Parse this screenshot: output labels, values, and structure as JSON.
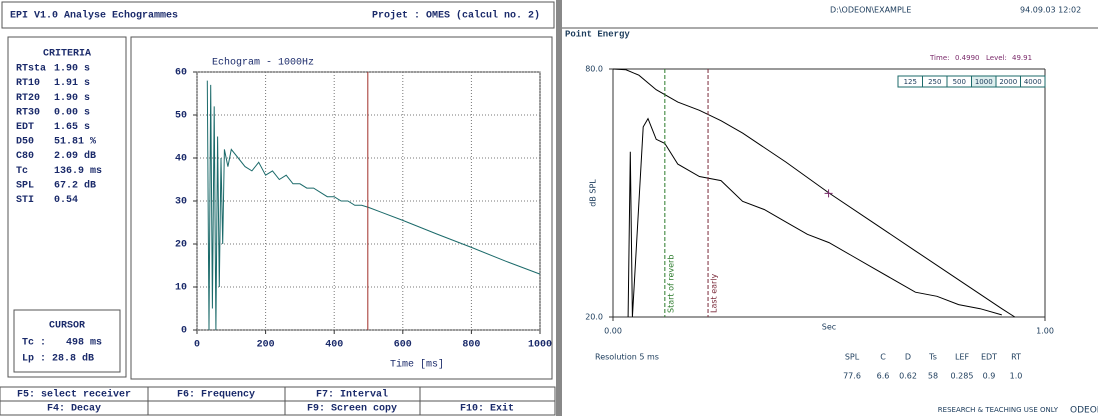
{
  "header": {
    "title": "EPI V1.0  Analyse Echogrammes",
    "project": "Projet : OMES (calcul no. 2)"
  },
  "criteria": {
    "title": "CRITERIA",
    "rows": [
      [
        "RTsta",
        "1.90 s"
      ],
      [
        "RT10",
        "1.91 s"
      ],
      [
        "RT20",
        "1.90 s"
      ],
      [
        "RT30",
        "0.00 s"
      ],
      [
        "EDT",
        "1.65 s"
      ],
      [
        "D50",
        "51.81 %"
      ],
      [
        "C80",
        "2.09 dB"
      ],
      [
        "Tc",
        "136.9 ms"
      ],
      [
        "SPL",
        "67.2 dB"
      ],
      [
        "STI",
        "0.54"
      ]
    ]
  },
  "cursor_box": {
    "title": "CURSOR",
    "tc_label": "Tc :",
    "tc": {
      "value": 498,
      "label": "498 ms"
    },
    "lp": "Lp : 28.8 dB"
  },
  "function_keys": [
    [
      "F5: select receiver",
      "F6: Frequency",
      "F7: Interval"
    ],
    [
      "F4: Decay",
      "F9: Screen copy",
      "F10: Exit"
    ]
  ],
  "right_header": {
    "path": "D:\\ODEON\\EXAMPLE",
    "datetime": "94.09.03 12:02"
  },
  "chart_data": [
    {
      "type": "line",
      "title": "Echogram - 1000Hz",
      "x_label": "Time [ms]",
      "xlim": [
        0,
        1000
      ],
      "xticks": [
        0,
        200,
        400,
        600,
        800,
        1000
      ],
      "ylim": [
        0,
        60
      ],
      "yticks": [
        0,
        10,
        20,
        30,
        40,
        50,
        60
      ],
      "grid": true,
      "series": [
        {
          "color": "#1b6a6a",
          "x": [
            30,
            35,
            40,
            45,
            50,
            55,
            60,
            65,
            70,
            75,
            80,
            90,
            100,
            120,
            140,
            160,
            180,
            200,
            220,
            240,
            260,
            280,
            300,
            320,
            340,
            360,
            380,
            400,
            420,
            440,
            460,
            480,
            500,
            600,
            700,
            800,
            900,
            1000
          ],
          "values": [
            58,
            0,
            57,
            5,
            52,
            0,
            45,
            10,
            40,
            20,
            42,
            38,
            42,
            40,
            38,
            37,
            39,
            36,
            37,
            35,
            36,
            34,
            34,
            33,
            33,
            32,
            31,
            31,
            30,
            30,
            29,
            29,
            28.5,
            25.5,
            22.3,
            19.2,
            16,
            13
          ]
        }
      ]
    },
    {
      "type": "line",
      "title": "Point Energy",
      "x_label": "Sec",
      "y_label": "dB SPL",
      "xlim": [
        0,
        1
      ],
      "xticks": [
        {
          "value": 0,
          "label": "0.00"
        },
        {
          "value": 1,
          "label": "1.00"
        }
      ],
      "ylim": [
        20,
        80
      ],
      "yticks": [
        {
          "value": 20,
          "label": "20.0"
        },
        {
          "value": 80,
          "label": "80.0"
        }
      ],
      "grid": false,
      "series": [
        {
          "color": "#000000",
          "x": [
            0,
            0.03,
            0.06,
            0.1,
            0.15,
            0.2,
            0.25,
            0.3,
            0.4,
            0.5,
            0.6,
            0.7,
            0.8,
            0.9,
            0.93
          ],
          "values": [
            80,
            79.8,
            78.5,
            75,
            72,
            70,
            67.5,
            64.5,
            57.5,
            50,
            43,
            36,
            29,
            22,
            20
          ]
        },
        {
          "color": "#000000",
          "x": [
            0.035,
            0.04,
            0.045,
            0.07,
            0.081,
            0.1,
            0.12,
            0.15,
            0.2,
            0.25,
            0.3,
            0.35,
            0.4,
            0.45,
            0.5,
            0.55,
            0.6,
            0.65,
            0.7,
            0.75,
            0.8,
            0.85,
            0.9
          ],
          "values": [
            20,
            60,
            20,
            66,
            68,
            63,
            62,
            57,
            54,
            53,
            48,
            46,
            43,
            40,
            38,
            35,
            32,
            29,
            26,
            25,
            23,
            22,
            20.5
          ]
        }
      ],
      "markers": [
        {
          "label": "Start of reverb",
          "x": 0.12,
          "color": "#2a7a2a"
        },
        {
          "label": "Last early",
          "x": 0.22,
          "color": "#7a2a3a"
        }
      ],
      "cursor": {
        "time_label": "Time:",
        "time": {
          "value": 0.499,
          "label": "0.4990"
        },
        "level_label": "Level:",
        "level": 49.91,
        "color": "#7a2a6a"
      },
      "frequency_buttons": {
        "labels": [
          "125",
          "250",
          "500",
          "1000",
          "2000",
          "4000"
        ],
        "active": 3
      },
      "resolution": "Resolution 5 ms",
      "stats": {
        "headers": [
          "SPL",
          "C",
          "D",
          "Ts",
          "LEF",
          "EDT",
          "RT"
        ],
        "values": [
          "77.6",
          "6.6",
          "0.62",
          "58",
          "0.285",
          "0.9",
          "1.0"
        ]
      },
      "footer": "RESEARCH & TEACHING USE ONLY",
      "logo": "ODEON"
    }
  ]
}
